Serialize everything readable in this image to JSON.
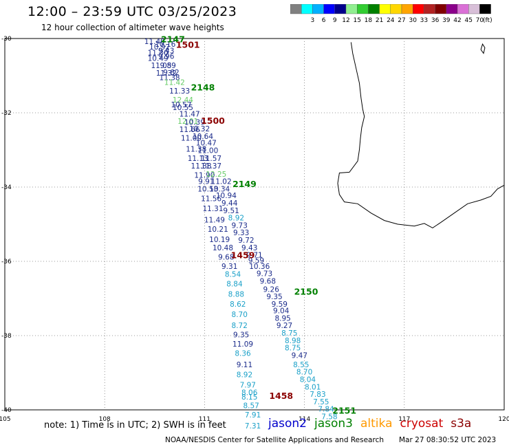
{
  "title": "12:00 – 23:59 UTC 03/25/2023",
  "subtitle": "12 hour collection of altimeter wave heights",
  "colorbar": {
    "unit": "(ft)",
    "bins": [
      {
        "color": "#808080",
        "label": ""
      },
      {
        "color": "#00ffff",
        "label": "3"
      },
      {
        "color": "#00b0ff",
        "label": "6"
      },
      {
        "color": "#0000ff",
        "label": "9"
      },
      {
        "color": "#00008b",
        "label": "12"
      },
      {
        "color": "#90ee90",
        "label": "15"
      },
      {
        "color": "#32cd32",
        "label": "18"
      },
      {
        "color": "#008000",
        "label": "21"
      },
      {
        "color": "#ffff00",
        "label": "24"
      },
      {
        "color": "#ffd700",
        "label": "27"
      },
      {
        "color": "#ffa500",
        "label": "30"
      },
      {
        "color": "#ff0000",
        "label": "33"
      },
      {
        "color": "#b22222",
        "label": "36"
      },
      {
        "color": "#800000",
        "label": "39"
      },
      {
        "color": "#8b008b",
        "label": "42"
      },
      {
        "color": "#da70d6",
        "label": "45"
      },
      {
        "color": "#d8bfd8",
        "label": "70"
      },
      {
        "color": "#000000",
        "label": ""
      }
    ]
  },
  "axes": {
    "lon_ticks": [
      "105",
      "108",
      "111",
      "114",
      "117",
      "120"
    ],
    "lat_ticks": [
      "-30",
      "-32",
      "-34",
      "-36",
      "-38",
      "-40"
    ]
  },
  "tracks": [
    {
      "sat": "jason2",
      "obs": [
        {
          "lon": 109.5,
          "lat": -30.15,
          "v": "11.40",
          "c": "#1a2a8a"
        },
        {
          "lon": 109.65,
          "lat": -30.3,
          "v": "10.92",
          "c": "#1a2a8a"
        },
        {
          "lon": 109.82,
          "lat": -30.22,
          "v": "10.16",
          "c": "#1a2a8a"
        },
        {
          "lon": 109.6,
          "lat": -30.45,
          "v": "11.30",
          "c": "#1a2a8a"
        },
        {
          "lon": 109.85,
          "lat": -30.4,
          "v": "9.43",
          "c": "#1a2a8a"
        },
        {
          "lon": 109.6,
          "lat": -30.6,
          "v": "10.49",
          "c": "#1a2a8a"
        },
        {
          "lon": 109.85,
          "lat": -30.55,
          "v": "9.96",
          "c": "#1a2a8a"
        },
        {
          "lon": 109.7,
          "lat": -30.8,
          "v": "11.05",
          "c": "#1a2a8a"
        },
        {
          "lon": 109.9,
          "lat": -30.8,
          "v": "9.89",
          "c": "#1a2a8a"
        },
        {
          "lon": 109.85,
          "lat": -31.0,
          "v": "11.32",
          "c": "#1a2a8a"
        },
        {
          "lon": 110.0,
          "lat": -30.98,
          "v": "9.82",
          "c": "#1a2a8a"
        },
        {
          "lon": 109.95,
          "lat": -31.12,
          "v": "11.38",
          "c": "#1a2a8a"
        },
        {
          "lon": 110.1,
          "lat": -31.25,
          "v": "11.42",
          "c": "#66cc66"
        },
        {
          "lon": 110.25,
          "lat": -31.48,
          "v": "11.33",
          "c": "#1a2a8a"
        },
        {
          "lon": 110.35,
          "lat": -31.72,
          "v": "12.44",
          "c": "#66cc66"
        },
        {
          "lon": 110.3,
          "lat": -31.85,
          "v": "10.57",
          "c": "#1a2a8a"
        },
        {
          "lon": 110.35,
          "lat": -31.93,
          "v": "10.55",
          "c": "#1a2a8a"
        },
        {
          "lon": 110.55,
          "lat": -32.1,
          "v": "11.47",
          "c": "#1a2a8a"
        },
        {
          "lon": 110.5,
          "lat": -32.3,
          "v": "12.01",
          "c": "#66cc66"
        },
        {
          "lon": 110.7,
          "lat": -32.32,
          "v": "10.39",
          "c": "#1a2a8a"
        },
        {
          "lon": 110.55,
          "lat": -32.52,
          "v": "11.66",
          "c": "#1a2a8a"
        },
        {
          "lon": 110.85,
          "lat": -32.5,
          "v": "10.32",
          "c": "#1a2a8a"
        },
        {
          "lon": 110.6,
          "lat": -32.75,
          "v": "11.00",
          "c": "#1a2a8a"
        },
        {
          "lon": 110.95,
          "lat": -32.7,
          "v": "10.64",
          "c": "#1a2a8a"
        },
        {
          "lon": 111.05,
          "lat": -32.88,
          "v": "10.47",
          "c": "#1a2a8a"
        },
        {
          "lon": 110.75,
          "lat": -33.05,
          "v": "11.38",
          "c": "#1a2a8a"
        },
        {
          "lon": 111.1,
          "lat": -33.08,
          "v": "11.00",
          "c": "#1a2a8a"
        },
        {
          "lon": 110.8,
          "lat": -33.3,
          "v": "11.13",
          "c": "#1a2a8a"
        },
        {
          "lon": 111.2,
          "lat": -33.3,
          "v": "11.57",
          "c": "#1a2a8a"
        },
        {
          "lon": 110.9,
          "lat": -33.5,
          "v": "11.38",
          "c": "#1a2a8a"
        },
        {
          "lon": 111.2,
          "lat": -33.5,
          "v": "11.37",
          "c": "#1a2a8a"
        },
        {
          "lon": 111.0,
          "lat": -33.75,
          "v": "11.90",
          "c": "#1a2a8a"
        },
        {
          "lon": 111.35,
          "lat": -33.72,
          "v": "12.25",
          "c": "#66cc66"
        },
        {
          "lon": 111.05,
          "lat": -33.92,
          "v": "9.91",
          "c": "#1a2a8a"
        },
        {
          "lon": 111.5,
          "lat": -33.92,
          "v": "11.02",
          "c": "#1a2a8a"
        },
        {
          "lon": 111.1,
          "lat": -34.12,
          "v": "10.53",
          "c": "#1a2a8a"
        },
        {
          "lon": 111.45,
          "lat": -34.12,
          "v": "10.34",
          "c": "#1a2a8a"
        },
        {
          "lon": 111.65,
          "lat": -34.3,
          "v": "10.94",
          "c": "#1a2a8a"
        },
        {
          "lon": 111.2,
          "lat": -34.38,
          "v": "11.56",
          "c": "#1a2a8a"
        },
        {
          "lon": 111.75,
          "lat": -34.5,
          "v": "9.44",
          "c": "#1a2a8a"
        },
        {
          "lon": 111.25,
          "lat": -34.65,
          "v": "11.31",
          "c": "#1a2a8a"
        },
        {
          "lon": 111.8,
          "lat": -34.7,
          "v": "9.51",
          "c": "#1a2a8a"
        },
        {
          "lon": 111.95,
          "lat": -34.9,
          "v": "8.92",
          "c": "#1aa0c8"
        },
        {
          "lon": 111.3,
          "lat": -34.95,
          "v": "11.49",
          "c": "#1a2a8a"
        },
        {
          "lon": 112.05,
          "lat": -35.1,
          "v": "9.73",
          "c": "#1a2a8a"
        },
        {
          "lon": 111.4,
          "lat": -35.2,
          "v": "10.21",
          "c": "#1a2a8a"
        },
        {
          "lon": 112.1,
          "lat": -35.3,
          "v": "9.33",
          "c": "#1a2a8a"
        },
        {
          "lon": 111.45,
          "lat": -35.48,
          "v": "10.19",
          "c": "#1a2a8a"
        },
        {
          "lon": 112.25,
          "lat": -35.5,
          "v": "9.72",
          "c": "#1a2a8a"
        },
        {
          "lon": 111.55,
          "lat": -35.7,
          "v": "10.48",
          "c": "#1a2a8a"
        },
        {
          "lon": 112.35,
          "lat": -35.7,
          "v": "9.43",
          "c": "#1a2a8a"
        },
        {
          "lon": 111.65,
          "lat": -35.95,
          "v": "9.68",
          "c": "#1a2a8a"
        },
        {
          "lon": 112.5,
          "lat": -35.9,
          "v": "9.71",
          "c": "#1a2a8a"
        },
        {
          "lon": 112.55,
          "lat": -36.05,
          "v": "9.59",
          "c": "#1a2a8a"
        },
        {
          "lon": 111.75,
          "lat": -36.2,
          "v": "9.31",
          "c": "#1a2a8a"
        },
        {
          "lon": 112.65,
          "lat": -36.2,
          "v": "10.36",
          "c": "#1a2a8a"
        },
        {
          "lon": 111.85,
          "lat": -36.42,
          "v": "8.54",
          "c": "#1aa0c8"
        },
        {
          "lon": 112.8,
          "lat": -36.4,
          "v": "9.73",
          "c": "#1a2a8a"
        },
        {
          "lon": 111.9,
          "lat": -36.68,
          "v": "8.84",
          "c": "#1aa0c8"
        },
        {
          "lon": 112.9,
          "lat": -36.6,
          "v": "9.68",
          "c": "#1a2a8a"
        },
        {
          "lon": 113.0,
          "lat": -36.82,
          "v": "9.26",
          "c": "#1a2a8a"
        },
        {
          "lon": 111.95,
          "lat": -36.95,
          "v": "8.88",
          "c": "#1aa0c8"
        },
        {
          "lon": 113.1,
          "lat": -37.02,
          "v": "9.35",
          "c": "#1a2a8a"
        },
        {
          "lon": 112.0,
          "lat": -37.22,
          "v": "8.62",
          "c": "#1aa0c8"
        },
        {
          "lon": 113.25,
          "lat": -37.22,
          "v": "9.59",
          "c": "#1a2a8a"
        },
        {
          "lon": 113.3,
          "lat": -37.4,
          "v": "9.04",
          "c": "#1a2a8a"
        },
        {
          "lon": 112.05,
          "lat": -37.5,
          "v": "8.70",
          "c": "#1aa0c8"
        },
        {
          "lon": 113.35,
          "lat": -37.6,
          "v": "8.95",
          "c": "#1a2a8a"
        },
        {
          "lon": 112.05,
          "lat": -37.8,
          "v": "8.72",
          "c": "#1aa0c8"
        },
        {
          "lon": 113.4,
          "lat": -37.8,
          "v": "9.27",
          "c": "#1a2a8a"
        },
        {
          "lon": 113.55,
          "lat": -38.0,
          "v": "8.75",
          "c": "#1aa0c8"
        },
        {
          "lon": 112.1,
          "lat": -38.05,
          "v": "9.35",
          "c": "#1a2a8a"
        },
        {
          "lon": 113.65,
          "lat": -38.2,
          "v": "8.98",
          "c": "#1aa0c8"
        },
        {
          "lon": 112.15,
          "lat": -38.3,
          "v": "11.09",
          "c": "#1a2a8a"
        },
        {
          "lon": 113.65,
          "lat": -38.4,
          "v": "8.75",
          "c": "#1aa0c8"
        },
        {
          "lon": 112.15,
          "lat": -38.55,
          "v": "8.36",
          "c": "#1aa0c8"
        },
        {
          "lon": 113.85,
          "lat": -38.6,
          "v": "9.47",
          "c": "#1a2a8a"
        },
        {
          "lon": 112.2,
          "lat": -38.85,
          "v": "9.11",
          "c": "#1a2a8a"
        },
        {
          "lon": 113.9,
          "lat": -38.85,
          "v": "8.55",
          "c": "#1aa0c8"
        },
        {
          "lon": 114.0,
          "lat": -39.05,
          "v": "8.70",
          "c": "#1aa0c8"
        },
        {
          "lon": 112.2,
          "lat": -39.12,
          "v": "8.92",
          "c": "#1aa0c8"
        },
        {
          "lon": 114.1,
          "lat": -39.25,
          "v": "8.04",
          "c": "#1aa0c8"
        },
        {
          "lon": 112.3,
          "lat": -39.4,
          "v": "7.97",
          "c": "#1aa0c8"
        },
        {
          "lon": 114.25,
          "lat": -39.45,
          "v": "8.01",
          "c": "#1aa0c8"
        },
        {
          "lon": 112.35,
          "lat": -39.6,
          "v": "8.06",
          "c": "#1aa0c8"
        },
        {
          "lon": 112.35,
          "lat": -39.72,
          "v": "8.15",
          "c": "#1aa0c8"
        },
        {
          "lon": 114.4,
          "lat": -39.65,
          "v": "7.83",
          "c": "#1aa0c8"
        },
        {
          "lon": 112.4,
          "lat": -39.95,
          "v": "8.57",
          "c": "#1aa0c8"
        },
        {
          "lon": 114.5,
          "lat": -39.85,
          "v": "7.55",
          "c": "#1aa0c8"
        },
        {
          "lon": 114.65,
          "lat": -40.05,
          "v": "7.84",
          "c": "#1aa0c8"
        },
        {
          "lon": 112.45,
          "lat": -40.2,
          "v": "7.91",
          "c": "#1aa0c8"
        },
        {
          "lon": 114.75,
          "lat": -40.25,
          "v": "7.58",
          "c": "#1aa0c8"
        },
        {
          "lon": 112.45,
          "lat": -40.5,
          "v": "7.31",
          "c": "#1aa0c8"
        }
      ]
    }
  ],
  "pass_labels": [
    {
      "lon": 110.05,
      "lat": -30.1,
      "text": "2147",
      "c": "#008000"
    },
    {
      "lon": 110.5,
      "lat": -30.25,
      "text": "1501",
      "c": "#8b0000"
    },
    {
      "lon": 110.95,
      "lat": -31.4,
      "text": "2148",
      "c": "#008000"
    },
    {
      "lon": 111.25,
      "lat": -32.3,
      "text": "1500",
      "c": "#8b0000"
    },
    {
      "lon": 112.2,
      "lat": -34.0,
      "text": "2149",
      "c": "#008000"
    },
    {
      "lon": 112.15,
      "lat": -35.92,
      "text": "1459",
      "c": "#8b0000"
    },
    {
      "lon": 114.05,
      "lat": -36.9,
      "text": "2150",
      "c": "#008000"
    },
    {
      "lon": 113.3,
      "lat": -39.7,
      "text": "1458",
      "c": "#8b0000"
    },
    {
      "lon": 115.2,
      "lat": -40.1,
      "text": "2151",
      "c": "#008000"
    }
  ],
  "legend": {
    "note": "note:  1) Time is in UTC;  2) SWH is in feet",
    "sats": [
      {
        "name": "jason2",
        "color": "#0000cc"
      },
      {
        "name": "jason3",
        "color": "#008000"
      },
      {
        "name": "altika",
        "color": "#ff9900"
      },
      {
        "name": "cryosat",
        "color": "#cc0000"
      },
      {
        "name": "s3a",
        "color": "#8b0000"
      }
    ]
  },
  "credit": "NOAA/NESDIS Center for Satellite Applications and Research",
  "timestamp": "Mar 27 08:30:52 UTC 2023"
}
